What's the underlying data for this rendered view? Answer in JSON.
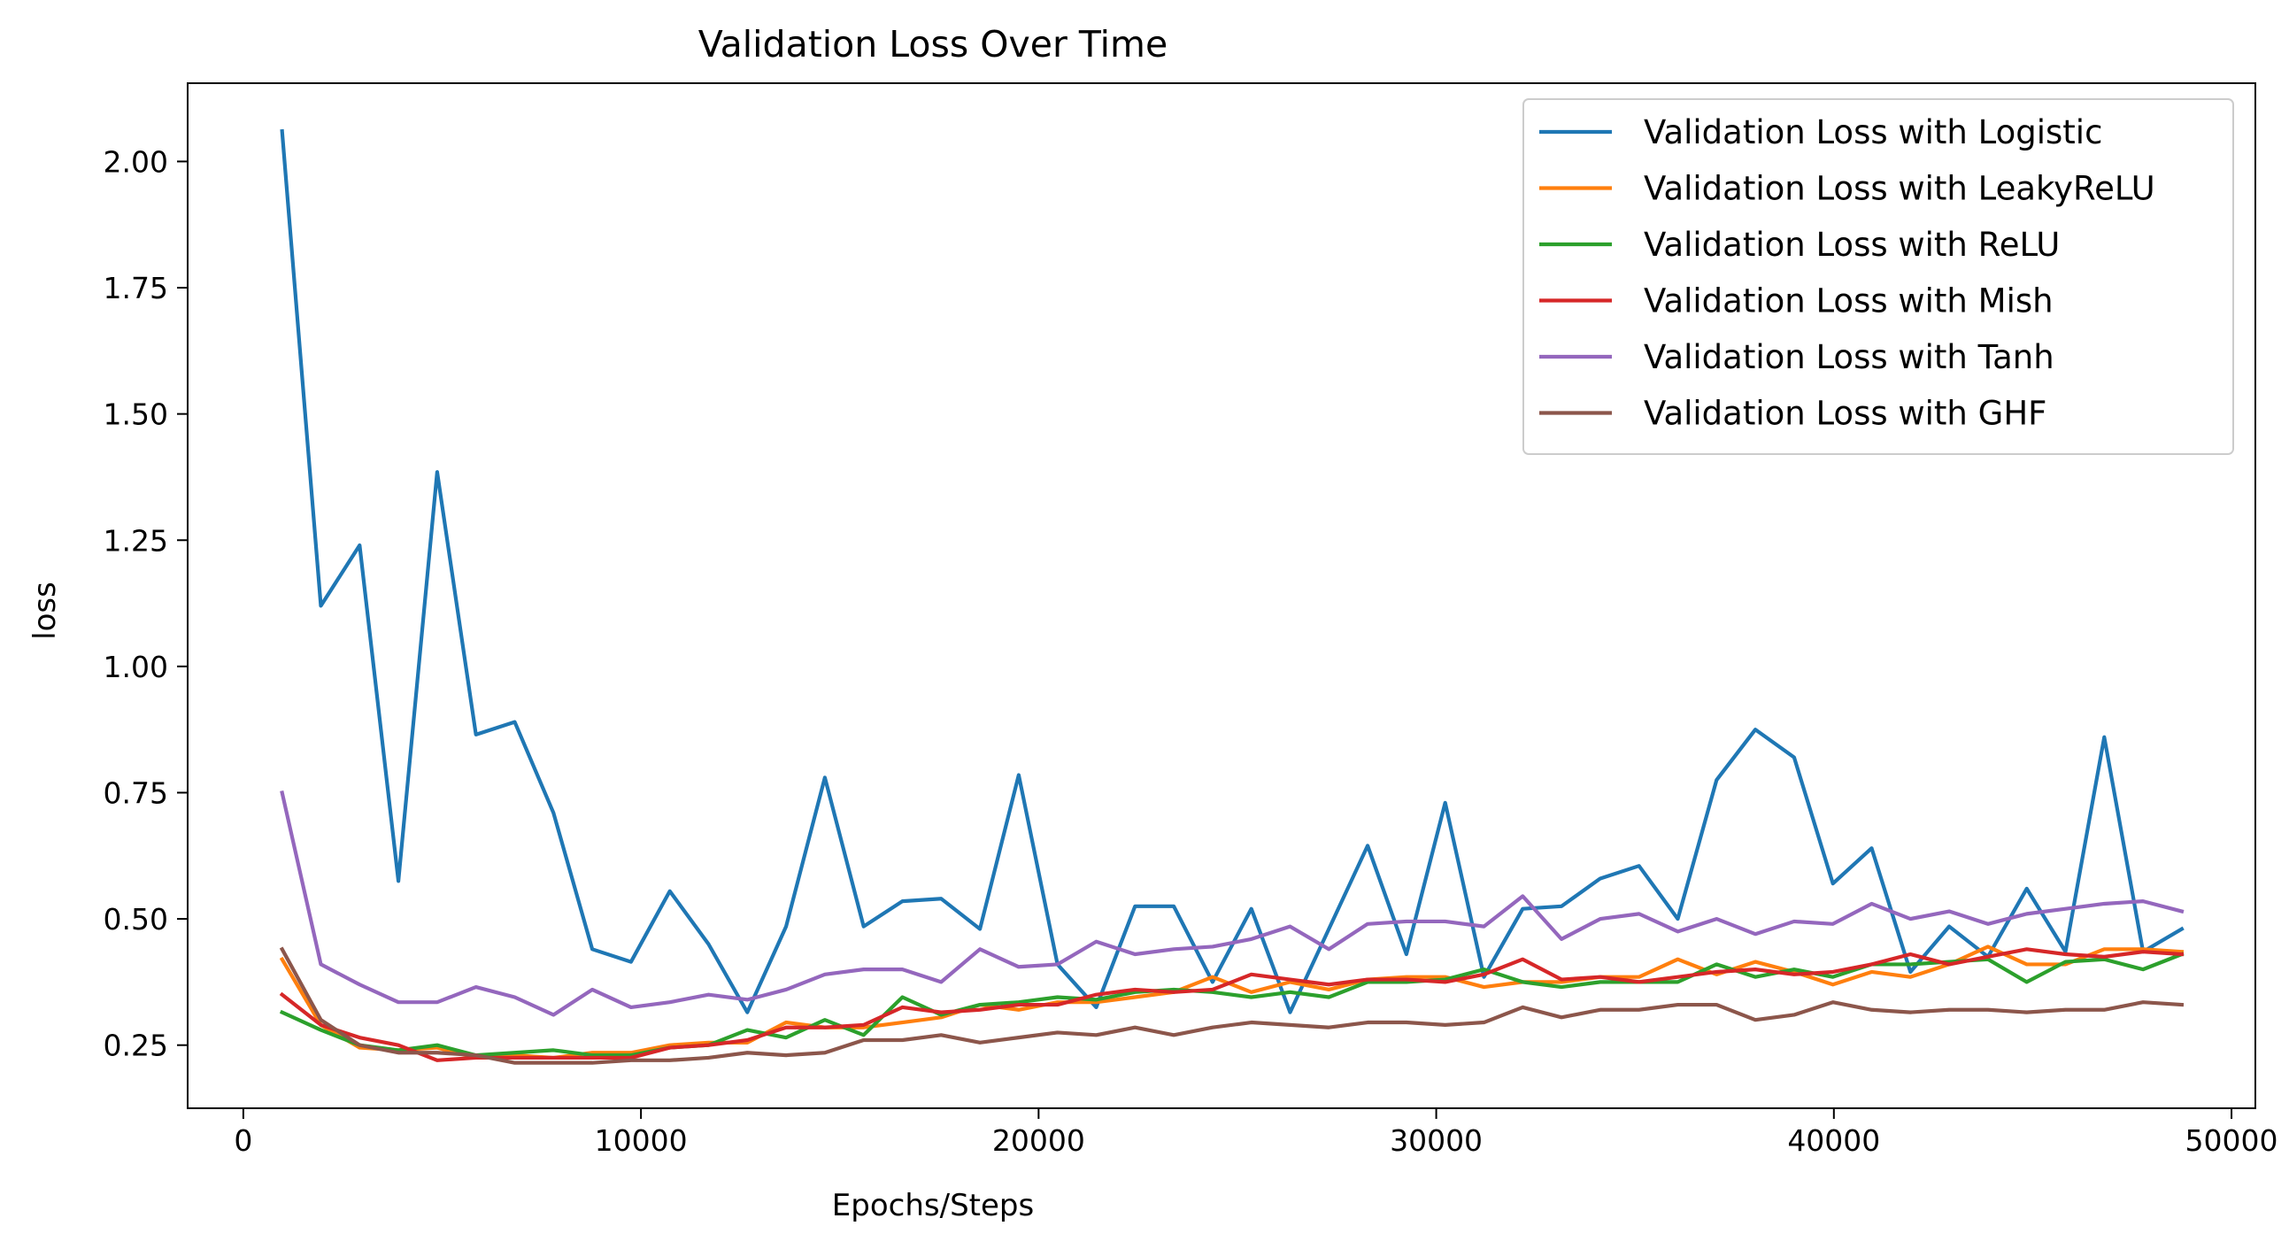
{
  "chart_data": {
    "type": "line",
    "title": "Validation Loss Over Time",
    "xlabel": "Epochs/Steps",
    "ylabel": "loss",
    "xlim": [
      -1400,
      50600
    ],
    "ylim": [
      0.125,
      2.155
    ],
    "xticks": [
      0,
      10000,
      20000,
      30000,
      40000,
      50000
    ],
    "xtick_labels": [
      "0",
      "10000",
      "20000",
      "30000",
      "40000",
      "50000"
    ],
    "yticks": [
      0.25,
      0.5,
      0.75,
      1.0,
      1.25,
      1.5,
      1.75,
      2.0
    ],
    "ytick_labels": [
      "0.25",
      "0.50",
      "0.75",
      "1.00",
      "1.25",
      "1.50",
      "1.75",
      "2.00"
    ],
    "grid": false,
    "legend_position": "upper right",
    "x": [
      975,
      1950,
      2925,
      3900,
      4875,
      5850,
      6825,
      7800,
      8775,
      9750,
      10725,
      11700,
      12675,
      13650,
      14625,
      15600,
      16575,
      17550,
      18525,
      19500,
      20475,
      21450,
      22425,
      23400,
      24375,
      25350,
      26325,
      27300,
      28275,
      29250,
      30225,
      31200,
      32175,
      33150,
      34125,
      35100,
      36075,
      37050,
      38025,
      39000,
      39975,
      40950,
      41925,
      42900,
      43875,
      44850,
      45825,
      46800,
      47775,
      48750
    ],
    "series": [
      {
        "name": "Validation Loss with Logistic",
        "color": "#1f77b4",
        "values": [
          2.06,
          1.12,
          1.24,
          0.575,
          1.385,
          0.865,
          0.89,
          0.71,
          0.44,
          0.415,
          0.555,
          0.45,
          0.315,
          0.485,
          0.78,
          0.485,
          0.535,
          0.54,
          0.48,
          0.785,
          0.41,
          0.325,
          0.525,
          0.525,
          0.375,
          0.52,
          0.315,
          0.48,
          0.645,
          0.43,
          0.73,
          0.385,
          0.52,
          0.525,
          0.58,
          0.605,
          0.5,
          0.775,
          0.875,
          0.82,
          0.57,
          0.64,
          0.395,
          0.485,
          0.425,
          0.56,
          0.435,
          0.86,
          0.435,
          0.48
        ]
      },
      {
        "name": "Validation Loss with LeakyReLU",
        "color": "#ff7f0e",
        "values": [
          0.42,
          0.29,
          0.245,
          0.24,
          0.245,
          0.225,
          0.23,
          0.225,
          0.235,
          0.235,
          0.25,
          0.255,
          0.255,
          0.295,
          0.285,
          0.285,
          0.295,
          0.305,
          0.33,
          0.32,
          0.335,
          0.335,
          0.345,
          0.355,
          0.385,
          0.355,
          0.375,
          0.36,
          0.38,
          0.385,
          0.385,
          0.365,
          0.375,
          0.375,
          0.385,
          0.385,
          0.42,
          0.39,
          0.415,
          0.395,
          0.37,
          0.395,
          0.385,
          0.41,
          0.445,
          0.41,
          0.41,
          0.44,
          0.44,
          0.435
        ]
      },
      {
        "name": "Validation Loss with ReLU",
        "color": "#2ca02c",
        "values": [
          0.315,
          0.28,
          0.25,
          0.24,
          0.25,
          0.23,
          0.235,
          0.24,
          0.23,
          0.23,
          0.245,
          0.25,
          0.28,
          0.265,
          0.3,
          0.27,
          0.345,
          0.31,
          0.33,
          0.335,
          0.345,
          0.34,
          0.355,
          0.36,
          0.355,
          0.345,
          0.355,
          0.345,
          0.375,
          0.375,
          0.38,
          0.4,
          0.375,
          0.365,
          0.375,
          0.375,
          0.375,
          0.41,
          0.385,
          0.4,
          0.385,
          0.41,
          0.41,
          0.415,
          0.42,
          0.375,
          0.415,
          0.42,
          0.4,
          0.43
        ]
      },
      {
        "name": "Validation Loss with Mish",
        "color": "#d62728",
        "values": [
          0.35,
          0.29,
          0.265,
          0.25,
          0.22,
          0.225,
          0.225,
          0.225,
          0.225,
          0.225,
          0.245,
          0.25,
          0.26,
          0.285,
          0.285,
          0.29,
          0.325,
          0.315,
          0.32,
          0.33,
          0.33,
          0.35,
          0.36,
          0.355,
          0.36,
          0.39,
          0.38,
          0.37,
          0.38,
          0.38,
          0.375,
          0.39,
          0.42,
          0.38,
          0.385,
          0.375,
          0.385,
          0.395,
          0.4,
          0.39,
          0.395,
          0.41,
          0.43,
          0.41,
          0.425,
          0.44,
          0.43,
          0.425,
          0.435,
          0.43
        ]
      },
      {
        "name": "Validation Loss with Tanh",
        "color": "#9467bd",
        "values": [
          0.75,
          0.41,
          0.37,
          0.335,
          0.335,
          0.365,
          0.345,
          0.31,
          0.36,
          0.325,
          0.335,
          0.35,
          0.34,
          0.36,
          0.39,
          0.4,
          0.4,
          0.375,
          0.44,
          0.405,
          0.41,
          0.455,
          0.43,
          0.44,
          0.445,
          0.46,
          0.485,
          0.44,
          0.49,
          0.495,
          0.495,
          0.485,
          0.545,
          0.46,
          0.5,
          0.51,
          0.475,
          0.5,
          0.47,
          0.495,
          0.49,
          0.53,
          0.5,
          0.515,
          0.49,
          0.51,
          0.52,
          0.53,
          0.535,
          0.515
        ]
      },
      {
        "name": "Validation Loss with GHF",
        "color": "#8c564b",
        "values": [
          0.44,
          0.3,
          0.25,
          0.235,
          0.235,
          0.23,
          0.215,
          0.215,
          0.215,
          0.22,
          0.22,
          0.225,
          0.235,
          0.23,
          0.235,
          0.26,
          0.26,
          0.27,
          0.255,
          0.265,
          0.275,
          0.27,
          0.285,
          0.27,
          0.285,
          0.295,
          0.29,
          0.285,
          0.295,
          0.295,
          0.29,
          0.295,
          0.325,
          0.305,
          0.32,
          0.32,
          0.33,
          0.33,
          0.3,
          0.31,
          0.335,
          0.32,
          0.315,
          0.32,
          0.32,
          0.315,
          0.32,
          0.32,
          0.335,
          0.33
        ]
      }
    ]
  }
}
